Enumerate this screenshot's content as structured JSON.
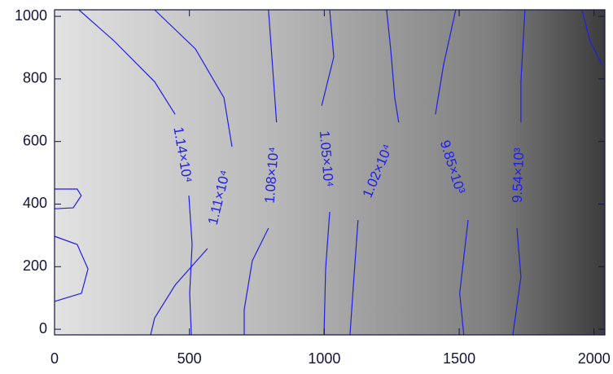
{
  "chart_data": {
    "type": "contour",
    "xlim": [
      0,
      2040
    ],
    "ylim": [
      -18,
      1021
    ],
    "xticks": [
      0,
      500,
      1000,
      1500,
      2000
    ],
    "yticks": [
      0,
      200,
      400,
      600,
      800,
      1000
    ],
    "color": "#1f1fe6",
    "contours": [
      {
        "x": [
          0,
          84,
          99,
          69,
          0,
          null,
          0,
          84,
          124,
          100,
          0
        ],
        "y": [
          448,
          448,
          427,
          388,
          385,
          null,
          297,
          271,
          193,
          115,
          89
        ]
      },
      {
        "label": "1.14×10⁴",
        "x": [
          90,
          220,
          371,
          447,
          null,
          498,
          510,
          501,
          507
        ],
        "y": [
          1021,
          922,
          791,
          687,
          null,
          427,
          271,
          115,
          -18
        ]
      },
      {
        "label": "1.11×10⁴",
        "x": [
          371,
          522,
          628,
          658,
          null,
          567,
          447,
          371,
          356
        ],
        "y": [
          1021,
          896,
          740,
          583,
          null,
          258,
          141,
          36,
          -18
        ]
      },
      {
        "label": "1.08×10⁴",
        "x": [
          793,
          808,
          823,
          null,
          793,
          733,
          703,
          703
        ],
        "y": [
          1021,
          844,
          661,
          null,
          323,
          219,
          63,
          -18
        ]
      },
      {
        "label": "1.05×10⁴",
        "x": [
          1020,
          1035,
          990,
          null,
          1020,
          1005,
          999
        ],
        "y": [
          1021,
          870,
          714,
          null,
          375,
          193,
          -18
        ]
      },
      {
        "label": "1.02×10⁴",
        "x": [
          1231,
          1246,
          1261,
          1276,
          null,
          1125,
          1110,
          1095
        ],
        "y": [
          1021,
          896,
          740,
          661,
          null,
          349,
          167,
          -18
        ]
      },
      {
        "label": "9.85×10³",
        "x": [
          1487,
          1442,
          1412,
          null,
          1533,
          1502,
          1517
        ],
        "y": [
          1021,
          844,
          687,
          null,
          349,
          115,
          -18
        ]
      },
      {
        "label": "9.54×10³",
        "x": [
          1744,
          1729,
          1729,
          null,
          1714,
          1729,
          1699
        ],
        "y": [
          1021,
          792,
          661,
          null,
          323,
          167,
          -18
        ]
      },
      {
        "x": [
          1955,
          1985,
          2030
        ],
        "y": [
          1021,
          922,
          844
        ]
      }
    ]
  }
}
